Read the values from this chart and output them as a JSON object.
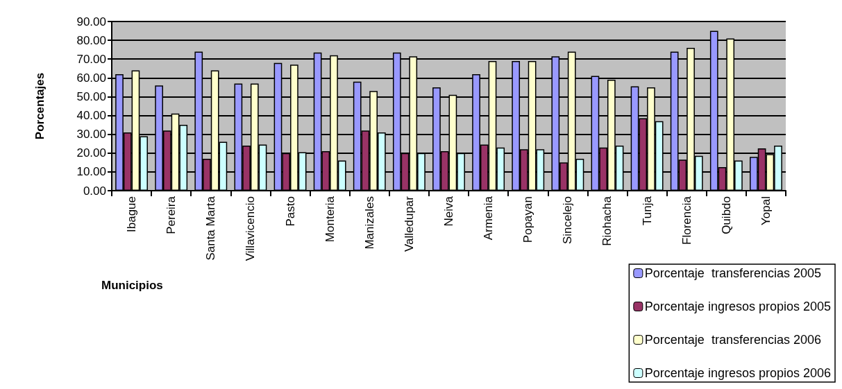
{
  "chart_data": {
    "type": "bar",
    "ylabel": "Porcentajes",
    "xlabel": "Municipios",
    "categories": [
      "Ibague",
      "Pereira",
      "Santa Marta",
      "Villavicencio",
      "Pasto",
      "Monteria",
      "Manizales",
      "Valledupar",
      "Neiva",
      "Armenia",
      "Popayan",
      "Sincelejo",
      "Riohacha",
      "Tunja",
      "Florencia",
      "Quibdo",
      "Yopal"
    ],
    "series": [
      {
        "name": "Porcentaje  transferencias 2005",
        "color": "#9999ff",
        "values": [
          62,
          56,
          74,
          57,
          68,
          73.5,
          58,
          73.5,
          55,
          62,
          69,
          71.5,
          61,
          55.5,
          74,
          85,
          18
        ]
      },
      {
        "name": "Porcentaje ingresos propios 2005",
        "color": "#993366",
        "values": [
          31,
          32,
          17,
          24,
          20,
          21,
          32,
          20,
          21,
          24.5,
          22,
          15,
          23,
          38.5,
          16.5,
          12.5,
          22.5
        ]
      },
      {
        "name": "Porcentaje  transferencias 2006",
        "color": "#ffffcc",
        "values": [
          64,
          41,
          64,
          57,
          67,
          72,
          53,
          71.5,
          51,
          69,
          69,
          74,
          59,
          55,
          76,
          81,
          19.5
        ]
      },
      {
        "name": "Porcentaje ingresos propios 2006",
        "color": "#ccffff",
        "values": [
          29,
          35,
          26,
          24.5,
          20.5,
          16,
          31,
          20,
          20,
          23,
          22,
          17,
          24,
          37,
          18.5,
          16,
          24
        ]
      }
    ],
    "ylim": [
      0,
      90
    ],
    "yticks": [
      {
        "value": 0,
        "label": "0.00"
      },
      {
        "value": 10,
        "label": "10.00"
      },
      {
        "value": 20,
        "label": "20.00"
      },
      {
        "value": 30,
        "label": "30.00"
      },
      {
        "value": 40,
        "label": "40.00"
      },
      {
        "value": 50,
        "label": "50.00"
      },
      {
        "value": 60,
        "label": "60.00"
      },
      {
        "value": 70,
        "label": "70.00"
      },
      {
        "value": 80,
        "label": "80.00"
      },
      {
        "value": 90,
        "label": "90.00"
      }
    ],
    "grid": "y",
    "legend": "bottom right"
  }
}
